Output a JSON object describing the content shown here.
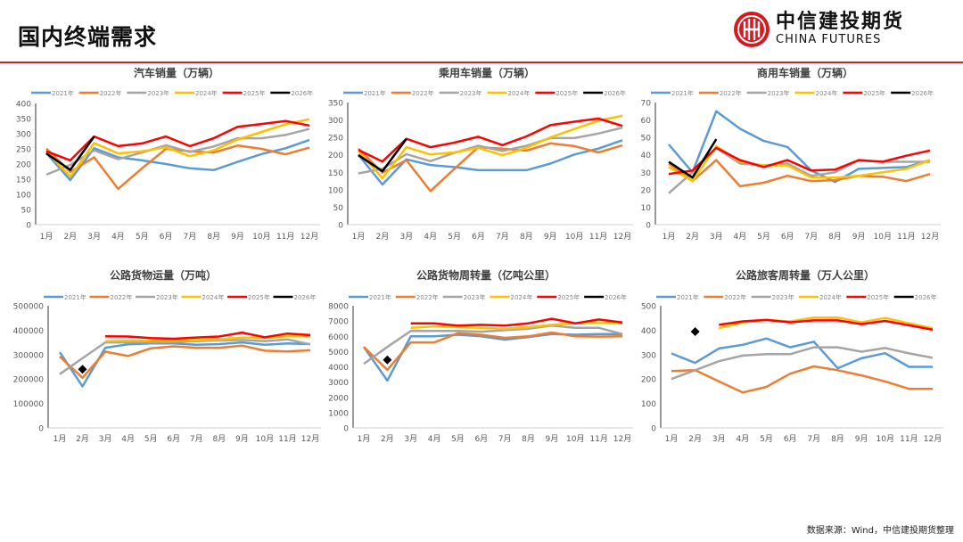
{
  "header": {
    "title": "国内终端需求"
  },
  "logo": {
    "cn": "中信建投期货",
    "en": "CHINA FUTURES"
  },
  "footer": {
    "source": "数据来源：Wind，中信建投期货整理"
  },
  "colors": {
    "2021年": "#5b9bd5",
    "2022年": "#ed7d31",
    "2023年": "#a5a5a5",
    "2024年": "#ffc000",
    "2025年": "#ff0000",
    "2026年": "#000000",
    "accent": "#c0282d"
  },
  "chart_data": [
    {
      "type": "line",
      "title": "汽车销量（万辆）",
      "categories": [
        "1月",
        "2月",
        "3月",
        "4月",
        "5月",
        "6月",
        "7月",
        "8月",
        "9月",
        "10月",
        "11月",
        "12月"
      ],
      "ylim": [
        0,
        400
      ],
      "ystep": 50,
      "legend": "top",
      "series": [
        {
          "name": "2021年",
          "values": [
            236,
            147,
            252,
            222,
            212,
            200,
            186,
            180,
            207,
            233,
            252,
            279
          ]
        },
        {
          "name": "2022年",
          "values": [
            251,
            174,
            222,
            118,
            186,
            250,
            242,
            238,
            261,
            250,
            232,
            254
          ]
        },
        {
          "name": "2023年",
          "values": [
            165,
            197,
            245,
            216,
            238,
            262,
            240,
            258,
            285,
            285,
            296,
            316
          ]
        },
        {
          "name": "2024年",
          "values": [
            243,
            158,
            269,
            235,
            242,
            255,
            226,
            245,
            281,
            306,
            331,
            348
          ]
        },
        {
          "name": "2025年",
          "values": [
            242,
            212,
            291,
            259,
            268,
            291,
            259,
            285,
            323,
            332,
            342,
            327
          ]
        },
        {
          "name": "2026年",
          "values": [
            235,
            181,
            291,
            null,
            null,
            null,
            null,
            null,
            null,
            null,
            null,
            null
          ]
        }
      ]
    },
    {
      "type": "line",
      "title": "乘用车销量（万辆）",
      "categories": [
        "1月",
        "2月",
        "3月",
        "4月",
        "5月",
        "6月",
        "7月",
        "8月",
        "9月",
        "10月",
        "11月",
        "12月"
      ],
      "ylim": [
        0,
        350
      ],
      "ystep": 50,
      "legend": "top",
      "series": [
        {
          "name": "2021年",
          "values": [
            200,
            115,
            187,
            171,
            165,
            156,
            156,
            156,
            175,
            201,
            218,
            242
          ]
        },
        {
          "name": "2022年",
          "values": [
            218,
            149,
            185,
            96,
            160,
            222,
            218,
            212,
            233,
            225,
            207,
            227
          ]
        },
        {
          "name": "2023年",
          "values": [
            147,
            160,
            202,
            182,
            206,
            226,
            211,
            226,
            248,
            248,
            261,
            278
          ]
        },
        {
          "name": "2024年",
          "values": [
            210,
            133,
            222,
            201,
            207,
            220,
            199,
            220,
            250,
            274,
            298,
            312
          ]
        },
        {
          "name": "2025年",
          "values": [
            214,
            181,
            246,
            222,
            235,
            252,
            228,
            253,
            285,
            295,
            304,
            283
          ]
        },
        {
          "name": "2026年",
          "values": [
            199,
            153,
            246,
            null,
            null,
            null,
            null,
            null,
            null,
            null,
            null,
            null
          ]
        }
      ]
    },
    {
      "type": "line",
      "title": "商用车销量（万辆）",
      "categories": [
        "1月",
        "2月",
        "3月",
        "4月",
        "5月",
        "6月",
        "7月",
        "8月",
        "9月",
        "10月",
        "11月",
        "12月"
      ],
      "ylim": [
        0,
        70
      ],
      "ystep": 10,
      "legend": "top",
      "series": [
        {
          "name": "2021年",
          "values": [
            46,
            30,
            65,
            55,
            48,
            44.5,
            31,
            24.5,
            32,
            32.5,
            33,
            37
          ]
        },
        {
          "name": "2022年",
          "values": [
            35,
            25,
            37,
            22,
            24,
            28,
            25,
            25.5,
            28,
            27.5,
            25,
            29
          ]
        },
        {
          "name": "2023年",
          "values": [
            18,
            30,
            44,
            35,
            34,
            35,
            28,
            30,
            37,
            36,
            36,
            36
          ]
        },
        {
          "name": "2024年",
          "values": [
            33,
            25,
            45,
            36,
            34,
            34,
            27,
            27,
            28,
            30,
            32,
            37
          ]
        },
        {
          "name": "2025年",
          "values": [
            29,
            31,
            44,
            37,
            33,
            37,
            31,
            31.5,
            37,
            36,
            39.5,
            42.5
          ]
        },
        {
          "name": "2026年",
          "values": [
            36,
            27,
            49,
            null,
            null,
            null,
            null,
            null,
            null,
            null,
            null,
            null
          ]
        }
      ]
    },
    {
      "type": "line",
      "title": "公路货物运量（万吨）",
      "categories": [
        "1月",
        "2月",
        "3月",
        "4月",
        "5月",
        "6月",
        "7月",
        "8月",
        "9月",
        "10月",
        "11月",
        "12月"
      ],
      "ylim": [
        0,
        500000
      ],
      "ystep": 100000,
      "legend": "top",
      "series": [
        {
          "name": "2021年",
          "values": [
            310000,
            170000,
            328000,
            342000,
            346000,
            346000,
            340000,
            343000,
            350000,
            340000,
            346000,
            343000
          ]
        },
        {
          "name": "2022年",
          "values": [
            292000,
            205000,
            312000,
            294000,
            326000,
            334000,
            328000,
            328000,
            337000,
            316000,
            313000,
            318000
          ]
        },
        {
          "name": "2023年",
          "values": [
            220000,
            285000,
            350000,
            350000,
            350000,
            352000,
            355000,
            358000,
            360000,
            355000,
            362000,
            342000
          ]
        },
        {
          "name": "2024年",
          "values": [
            null,
            null,
            355000,
            357000,
            358000,
            358000,
            360000,
            362000,
            370000,
            368000,
            375000,
            375000
          ]
        },
        {
          "name": "2025年",
          "values": [
            null,
            null,
            375000,
            374000,
            368000,
            365000,
            370000,
            374000,
            390000,
            371000,
            386000,
            380000
          ]
        },
        {
          "name": "2026年",
          "values": [
            null,
            240000,
            null,
            null,
            null,
            null,
            null,
            null,
            null,
            null,
            null,
            null
          ],
          "marker": "diamond"
        }
      ]
    },
    {
      "type": "line",
      "title": "公路货物周转量（亿吨公里）",
      "categories": [
        "1月",
        "2月",
        "3月",
        "4月",
        "5月",
        "6月",
        "7月",
        "8月",
        "9月",
        "10月",
        "11月",
        "12月"
      ],
      "ylim": [
        0,
        8000
      ],
      "ystep": 1000,
      "legend": "top",
      "series": [
        {
          "name": "2021年",
          "values": [
            5300,
            3100,
            6000,
            6000,
            6100,
            6000,
            5780,
            5950,
            6150,
            6100,
            6150,
            6150
          ]
        },
        {
          "name": "2022年",
          "values": [
            5300,
            3800,
            5600,
            5600,
            6200,
            6100,
            5900,
            6000,
            6250,
            6000,
            5980,
            6000
          ]
        },
        {
          "name": "2023年",
          "values": [
            4200,
            5300,
            6350,
            6350,
            6350,
            6300,
            6400,
            6500,
            6700,
            6550,
            6550,
            6150
          ]
        },
        {
          "name": "2024年",
          "values": [
            null,
            null,
            6550,
            6650,
            6600,
            6550,
            6500,
            6600,
            6750,
            6850,
            6900,
            6850
          ]
        },
        {
          "name": "2025年",
          "values": [
            null,
            null,
            6850,
            6850,
            6700,
            6750,
            6700,
            6850,
            7150,
            6850,
            7100,
            6900
          ]
        },
        {
          "name": "2026年",
          "values": [
            null,
            4450,
            null,
            null,
            null,
            null,
            null,
            null,
            null,
            null,
            null,
            null
          ],
          "marker": "diamond"
        }
      ]
    },
    {
      "type": "line",
      "title": "公路旅客周转量（万人公里）",
      "categories": [
        "1月",
        "2月",
        "3月",
        "4月",
        "5月",
        "6月",
        "7月",
        "8月",
        "9月",
        "10月",
        "11月",
        "12月"
      ],
      "ylim": [
        0,
        500
      ],
      "ystep": 100,
      "legend": "top",
      "series": [
        {
          "name": "2021年",
          "values": [
            305,
            266,
            325,
            340,
            366,
            330,
            353,
            244,
            285,
            306,
            250,
            250
          ]
        },
        {
          "name": "2022年",
          "values": [
            233,
            236,
            190,
            145,
            168,
            222,
            252,
            236,
            215,
            190,
            160,
            160
          ]
        },
        {
          "name": "2023年",
          "values": [
            200,
            236,
            273,
            296,
            302,
            302,
            330,
            330,
            312,
            327,
            305,
            287
          ]
        },
        {
          "name": "2024年",
          "values": [
            null,
            null,
            408,
            432,
            442,
            436,
            452,
            452,
            432,
            450,
            428,
            408
          ]
        },
        {
          "name": "2025年",
          "values": [
            null,
            null,
            422,
            436,
            442,
            432,
            440,
            440,
            425,
            438,
            420,
            402
          ]
        },
        {
          "name": "2026年",
          "values": [
            null,
            394,
            null,
            null,
            null,
            null,
            null,
            null,
            null,
            null,
            null,
            null
          ],
          "marker": "diamond"
        }
      ]
    }
  ]
}
